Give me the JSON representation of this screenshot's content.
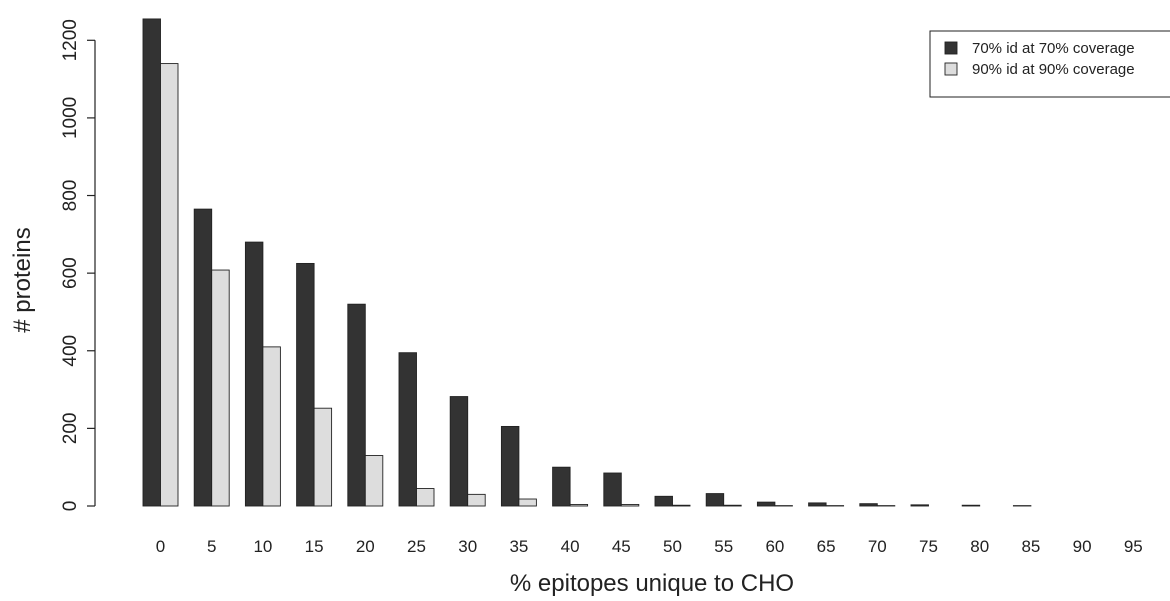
{
  "chart_data": {
    "type": "bar",
    "title": "",
    "xlabel": "% epitopes unique to CHO",
    "ylabel": "# proteins",
    "ylim": [
      0,
      1260
    ],
    "yticks": [
      0,
      200,
      400,
      600,
      800,
      1000,
      1200
    ],
    "grid": false,
    "legend_position": "top-right",
    "categories": [
      "0",
      "5",
      "10",
      "15",
      "20",
      "25",
      "30",
      "35",
      "40",
      "45",
      "50",
      "55",
      "60",
      "65",
      "70",
      "75",
      "80",
      "85",
      "90",
      "95"
    ],
    "series": [
      {
        "name": "70% id at 70% coverage",
        "color": "#333333",
        "values": [
          1255,
          765,
          680,
          625,
          520,
          395,
          282,
          205,
          100,
          85,
          25,
          32,
          10,
          8,
          6,
          3,
          2,
          1,
          0,
          0
        ]
      },
      {
        "name": "90% id at 90% coverage",
        "color": "#dddddd",
        "values": [
          1140,
          608,
          410,
          252,
          130,
          45,
          30,
          18,
          4,
          4,
          2,
          2,
          1,
          1,
          1,
          0,
          0,
          0,
          0,
          0
        ]
      }
    ]
  }
}
